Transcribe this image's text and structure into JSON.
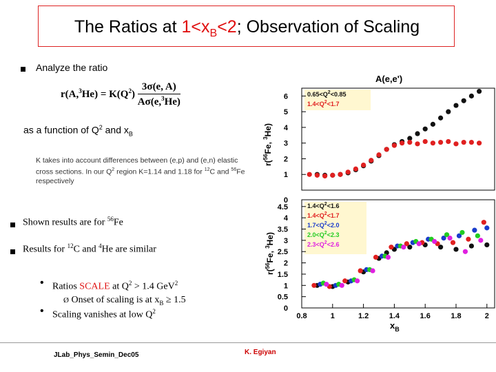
{
  "slide": {
    "title": {
      "prefix": "The Ratios at ",
      "range_a": "1<x",
      "range_sub": "B",
      "range_b": "<2",
      "suffix": "; Observation of Scaling"
    },
    "intro": "Analyze the ratio",
    "formula": {
      "lhs_a": "r(A,",
      "lhs_sup": "3",
      "lhs_b": "He) = K(Q",
      "lhs_sup2": "2",
      "lhs_c": ")",
      "num": "3σ(e, A)",
      "den_a": "Aσ(e,",
      "den_sup": "3",
      "den_b": "He)"
    },
    "function_of": {
      "a": "as a function of Q",
      "sup": "2",
      "b": " and x",
      "sub": "B"
    },
    "k_note": {
      "a": "K takes into account differences between (e,p) and (e,n) elastic cross sections. In our Q",
      "sup1": "2",
      "b": " region K=1.14 and 1.18 for ",
      "sup2": "12",
      "c": "C and ",
      "sup3": "56",
      "d": "Fe respectively"
    },
    "bullets": [
      {
        "a": "Shown results are for ",
        "sup": "56",
        "b": "Fe"
      },
      {
        "a": "Results for ",
        "sup1": "12",
        "b": "C and ",
        "sup2": "4",
        "c": "He are similar"
      }
    ],
    "sub_bullets": {
      "scale": {
        "a": "Ratios ",
        "hl": "SCALE",
        "b": " at Q",
        "sup": "2",
        "c": " > 1.4 GeV",
        "sup2": "2"
      },
      "onset": {
        "arrow": "Ø",
        "a": " Onset of scaling is at x",
        "sub": "B",
        "b": " ≥ 1.5"
      },
      "vanish": {
        "a": "Scaling vanishes at low Q",
        "sup": "2"
      }
    },
    "footer": {
      "left": "JLab_Phys_Semin_Dec05",
      "right": "K. Egiyan"
    }
  },
  "chart_data": [
    {
      "type": "scatter",
      "title": "A(e,e')",
      "ylabel_a": "r(",
      "ylabel_sup1": "56",
      "ylabel_b": "Fe, ",
      "ylabel_sup2": "3",
      "ylabel_c": "He)",
      "ylim": [
        0,
        6.5
      ],
      "yticks": [
        {
          "v": 1,
          "label": "1"
        },
        {
          "v": 2,
          "label": "2"
        },
        {
          "v": 3,
          "label": "3"
        },
        {
          "v": 4,
          "label": "4"
        },
        {
          "v": 5,
          "label": "5"
        },
        {
          "v": 6,
          "label": "6"
        }
      ],
      "xlim": [
        0.8,
        2.05
      ],
      "series": [
        {
          "name": "0.65<Q2<0.85",
          "legend": {
            "a": "0.65<Q",
            "sup": "2",
            "b": "<0.85"
          },
          "color": "#111111",
          "x": [
            0.9,
            0.95,
            1.0,
            1.05,
            1.1,
            1.15,
            1.2,
            1.25,
            1.3,
            1.35,
            1.4,
            1.45,
            1.5,
            1.55,
            1.6,
            1.65,
            1.7,
            1.75,
            1.8,
            1.85,
            1.9,
            1.95
          ],
          "y": [
            1.0,
            0.95,
            0.95,
            1.0,
            1.1,
            1.3,
            1.55,
            1.85,
            2.2,
            2.6,
            2.9,
            3.1,
            3.3,
            3.6,
            3.9,
            4.2,
            4.6,
            5.0,
            5.4,
            5.7,
            6.0,
            6.3
          ]
        },
        {
          "name": "1.4<Q2<1.7",
          "legend": {
            "a": "1.4<Q",
            "sup": "2",
            "b": "<1.7"
          },
          "color": "#e02020",
          "x": [
            0.85,
            0.9,
            0.95,
            1.0,
            1.05,
            1.1,
            1.15,
            1.2,
            1.25,
            1.3,
            1.35,
            1.4,
            1.45,
            1.5,
            1.55,
            1.6,
            1.65,
            1.7,
            1.75,
            1.8,
            1.85,
            1.9,
            1.95
          ],
          "y": [
            1.0,
            0.95,
            0.9,
            0.95,
            1.0,
            1.15,
            1.35,
            1.6,
            1.9,
            2.25,
            2.6,
            2.85,
            3.0,
            3.05,
            2.95,
            3.1,
            3.0,
            3.05,
            3.1,
            2.95,
            3.05,
            3.05,
            3.0
          ]
        }
      ]
    },
    {
      "type": "scatter",
      "ylabel_a": "r(",
      "ylabel_sup1": "56",
      "ylabel_b": "Fe, ",
      "ylabel_sup2": "3",
      "ylabel_c": "He)",
      "xlabel": "x",
      "xlabel_sub": "B",
      "ylim": [
        0,
        4.8
      ],
      "yticks": [
        {
          "v": 0,
          "label": "0"
        },
        {
          "v": 0.5,
          "label": "0.5"
        },
        {
          "v": 1,
          "label": "1"
        },
        {
          "v": 1.5,
          "label": "1.5"
        },
        {
          "v": 2,
          "label": "2"
        },
        {
          "v": 2.5,
          "label": "2.5"
        },
        {
          "v": 3,
          "label": "3"
        },
        {
          "v": 3.5,
          "label": "3.5"
        },
        {
          "v": 4,
          "label": "4"
        },
        {
          "v": 4.5,
          "label": "4.5"
        }
      ],
      "top_tick": {
        "v": 4.8,
        "label": "0"
      },
      "xlim": [
        0.8,
        2.05
      ],
      "xticks": [
        {
          "v": 0.8,
          "label": "0.8"
        },
        {
          "v": 1,
          "label": "1"
        },
        {
          "v": 1.2,
          "label": "1.2"
        },
        {
          "v": 1.4,
          "label": "1.4"
        },
        {
          "v": 1.6,
          "label": "1.6"
        },
        {
          "v": 1.8,
          "label": "1.8"
        },
        {
          "v": 2,
          "label": "2"
        }
      ],
      "series": [
        {
          "name": "1.4<Q2<1.6",
          "legend": {
            "a": "1.4<Q",
            "sup": "2",
            "b": "<1.6"
          },
          "color": "#111111",
          "x": [
            0.9,
            1.0,
            1.1,
            1.2,
            1.3,
            1.35,
            1.4,
            1.5,
            1.6,
            1.7,
            1.8,
            1.9,
            2.0
          ],
          "y": [
            1.0,
            0.95,
            1.15,
            1.6,
            2.2,
            2.45,
            2.6,
            2.7,
            2.8,
            2.7,
            2.6,
            2.75,
            2.8
          ]
        },
        {
          "name": "1.4<Q2<1.7",
          "legend": {
            "a": "1.4<Q",
            "sup": "2",
            "b": "<1.7"
          },
          "color": "#e02020",
          "x": [
            0.88,
            0.98,
            1.08,
            1.18,
            1.28,
            1.38,
            1.48,
            1.58,
            1.68,
            1.78,
            1.88,
            1.98
          ],
          "y": [
            1.0,
            0.95,
            1.2,
            1.65,
            2.25,
            2.7,
            2.85,
            2.9,
            2.85,
            2.9,
            3.05,
            3.8
          ]
        },
        {
          "name": "1.7<Q2<2.0",
          "legend": {
            "a": "1.7<Q",
            "sup": "2",
            "b": "<2.0"
          },
          "color": "#1a3ccc",
          "x": [
            0.92,
            1.02,
            1.12,
            1.22,
            1.32,
            1.42,
            1.52,
            1.62,
            1.72,
            1.82,
            1.92,
            2.0
          ],
          "y": [
            1.05,
            1.0,
            1.2,
            1.7,
            2.3,
            2.75,
            2.9,
            3.05,
            3.1,
            3.2,
            3.45,
            3.55
          ]
        },
        {
          "name": "2.0<Q2<2.3",
          "legend": {
            "a": "2.0<Q",
            "sup": "2",
            "b": "<2.3"
          },
          "color": "#22cc22",
          "x": [
            0.94,
            1.04,
            1.14,
            1.24,
            1.34,
            1.44,
            1.54,
            1.64,
            1.74,
            1.84,
            1.94
          ],
          "y": [
            1.1,
            1.05,
            1.25,
            1.7,
            2.3,
            2.75,
            2.95,
            3.05,
            3.25,
            3.35,
            3.2
          ]
        },
        {
          "name": "2.3<Q2<2.6",
          "legend": {
            "a": "2.3<Q",
            "sup": "2",
            "b": "<2.6"
          },
          "color": "#e020e0",
          "x": [
            0.96,
            1.06,
            1.16,
            1.26,
            1.36,
            1.46,
            1.56,
            1.66,
            1.76,
            1.86,
            1.96
          ],
          "y": [
            1.05,
            1.0,
            1.2,
            1.65,
            2.25,
            2.7,
            2.85,
            2.95,
            3.1,
            2.5,
            3.0
          ]
        }
      ]
    }
  ]
}
